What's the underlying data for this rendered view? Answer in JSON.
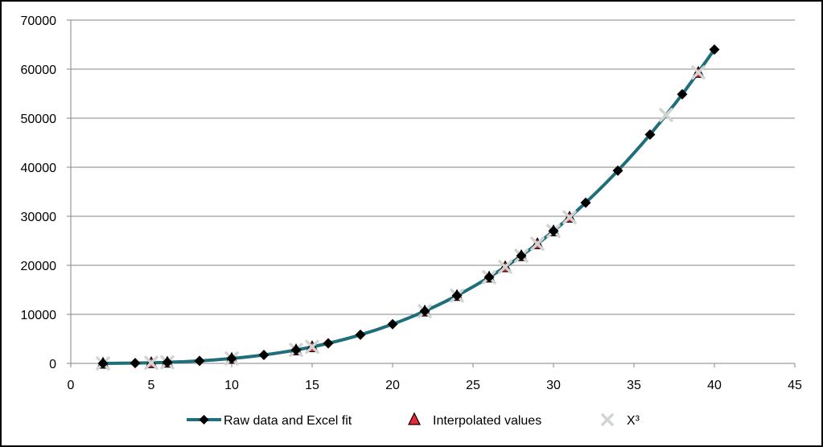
{
  "chart_data": {
    "type": "scatter",
    "title": "",
    "xlabel": "",
    "ylabel": "",
    "xlim": [
      0,
      45
    ],
    "ylim": [
      0,
      70000
    ],
    "xticks": [
      0,
      5,
      10,
      15,
      20,
      25,
      30,
      35,
      40,
      45
    ],
    "yticks": [
      0,
      10000,
      20000,
      30000,
      40000,
      50000,
      60000,
      70000
    ],
    "x_tick_labels": [
      "0",
      "5",
      "10",
      "15",
      "20",
      "25",
      "30",
      "35",
      "40",
      "45"
    ],
    "y_tick_labels": [
      "0",
      "10000",
      "20000",
      "30000",
      "40000",
      "50000",
      "60000",
      "70000"
    ],
    "grid": "horizontal",
    "legend_position": "bottom",
    "series": [
      {
        "name": "Raw data and Excel fit",
        "style": "smooth-line-with-diamond-markers",
        "color": "#1F6E7A",
        "marker_color": "#000000",
        "x": [
          2,
          4,
          6,
          8,
          10,
          12,
          14,
          16,
          18,
          20,
          22,
          24,
          26,
          28,
          30,
          32,
          34,
          36,
          38,
          40
        ],
        "y": [
          8,
          64,
          216,
          512,
          1000,
          1728,
          2744,
          4096,
          5832,
          8000,
          10648,
          13824,
          17576,
          21952,
          27000,
          32768,
          39304,
          46656,
          54872,
          64000
        ]
      },
      {
        "name": "Interpolated values",
        "style": "triangle-markers",
        "color": "#E8293B",
        "x": [
          2,
          5,
          6,
          10,
          14,
          15,
          22,
          24,
          26,
          27,
          28,
          29,
          30,
          31,
          39
        ],
        "y": [
          8,
          125,
          216,
          1000,
          2744,
          3375,
          10648,
          13824,
          17576,
          19683,
          21952,
          24389,
          27000,
          29791,
          59319
        ]
      },
      {
        "name": "X³",
        "style": "x-markers",
        "color": "#D0D4D2",
        "x": [
          2,
          5,
          6,
          10,
          14,
          15,
          22,
          24,
          26,
          27,
          28,
          29,
          30,
          31,
          37,
          39
        ],
        "y": [
          8,
          125,
          216,
          1000,
          2744,
          3375,
          10648,
          13824,
          17576,
          19683,
          21952,
          24389,
          27000,
          29791,
          50653,
          59319
        ]
      }
    ]
  }
}
